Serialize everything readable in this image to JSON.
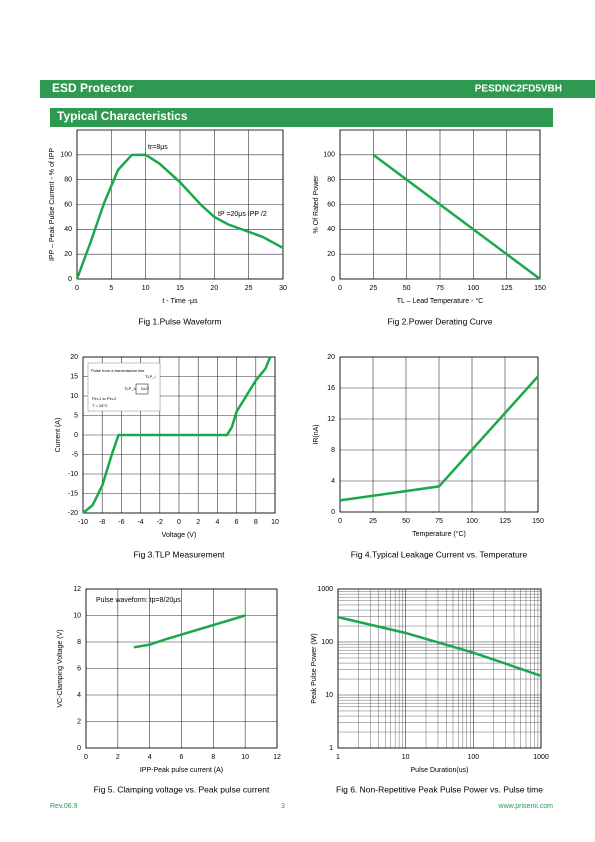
{
  "header": {
    "title": "ESD Protector",
    "part": "PESDNC2FD5VBH"
  },
  "section": "Typical Characteristics",
  "footer": {
    "revision": "Rev.06.9",
    "page": "3",
    "url": "www.prisemi.com"
  },
  "chart_data": [
    {
      "type": "line",
      "title": "Fig 1.Pulse Waveform",
      "xlabel": "t - Time -μs",
      "ylabel": "IPP – Peak Pulse Current - % of IPP",
      "x": [
        0,
        2,
        4,
        6,
        8,
        10,
        12,
        15,
        18,
        20,
        22,
        25,
        27,
        30
      ],
      "values": [
        0,
        30,
        62,
        88,
        100,
        100,
        93,
        78,
        60,
        50,
        44,
        38,
        34,
        25
      ],
      "color": "#1aa84c",
      "xlim": [
        0,
        30
      ],
      "ylim": [
        0,
        120
      ],
      "xticks": [
        0,
        5,
        10,
        15,
        20,
        25,
        30
      ],
      "yticks": [
        0,
        20,
        40,
        60,
        80,
        100
      ],
      "grid": true,
      "annotations": [
        "tr=8μs",
        "tP =20μs IPP /2"
      ]
    },
    {
      "type": "line",
      "title": "Fig 2.Power Derating Curve",
      "xlabel": "TL – Lead Temperature - °C",
      "ylabel": "% Of Rated Power",
      "x": [
        25,
        150
      ],
      "values": [
        100,
        0
      ],
      "color": "#1aa84c",
      "xlim": [
        0,
        150
      ],
      "ylim": [
        0,
        120
      ],
      "xticks": [
        0,
        25,
        50,
        75,
        100,
        125,
        150
      ],
      "yticks": [
        0,
        20,
        40,
        60,
        80,
        100
      ],
      "grid": true
    },
    {
      "type": "line",
      "title": "Fig 3.TLP Measurement",
      "xlabel": "Voltage    (V)",
      "ylabel": "Current (A)",
      "x": [
        -10,
        -9,
        -8,
        -7,
        -6.3,
        5,
        5.5,
        6,
        7,
        8,
        9,
        9.5
      ],
      "values": [
        -20,
        -18,
        -13,
        -5,
        0,
        0,
        2,
        6,
        10,
        14,
        17,
        20
      ],
      "color": "#1aa84c",
      "xlim": [
        -10,
        10
      ],
      "ylim": [
        -20,
        20
      ],
      "xticks": [
        -10,
        -8,
        -6,
        -4,
        -2,
        0,
        2,
        4,
        6,
        8,
        10
      ],
      "yticks": [
        -20,
        -15,
        -10,
        -5,
        0,
        5,
        10,
        15,
        20
      ],
      "grid": true,
      "annotations": [
        "Pulse from a transmission line",
        "TLP_V",
        "DUT",
        "TLP_I",
        "Pin-1 to Pin-2",
        "T = 25°C"
      ]
    },
    {
      "type": "line",
      "title": "Fig 4.Typical Leakage Current vs. Temperature",
      "xlabel": "Temperature (°C)",
      "ylabel": "IR(nA)",
      "x": [
        0,
        75,
        150
      ],
      "values": [
        1.5,
        3.3,
        17.5
      ],
      "color": "#1aa84c",
      "xlim": [
        0,
        150
      ],
      "ylim": [
        0,
        20
      ],
      "xticks": [
        0,
        25,
        50,
        75,
        100,
        125,
        150
      ],
      "yticks": [
        0,
        4,
        8,
        12,
        16,
        20
      ],
      "grid": true
    },
    {
      "type": "line",
      "title": "Fig 5. Clamping voltage vs. Peak pulse current",
      "xlabel": "IPP-Peak pulse current (A)",
      "ylabel": "VC-Clamping Voltage (V)",
      "x": [
        3,
        4,
        5,
        10
      ],
      "values": [
        7.6,
        7.8,
        8.2,
        10
      ],
      "color": "#1aa84c",
      "xlim": [
        0,
        12
      ],
      "ylim": [
        0,
        12
      ],
      "xticks": [
        0,
        2,
        4,
        6,
        8,
        10,
        12
      ],
      "yticks": [
        0,
        2,
        4,
        6,
        8,
        10,
        12
      ],
      "grid": true,
      "annotations": [
        "Pulse waveform: tp=8/20μs"
      ]
    },
    {
      "type": "line",
      "title": "Fig 6. Non-Repetitive Peak Pulse Power vs. Pulse time",
      "xlabel": "Pulse Duration(us)",
      "ylabel": "Peak Pulse Power (W)",
      "x": [
        1,
        10,
        100,
        1000
      ],
      "values": [
        295,
        148,
        63,
        23
      ],
      "color": "#1aa84c",
      "log_x": true,
      "log_y": true,
      "xlim": [
        1,
        1000
      ],
      "ylim": [
        1,
        1000
      ],
      "xticks": [
        1,
        10,
        100,
        1000
      ],
      "yticks": [
        1,
        10,
        100,
        1000
      ],
      "grid": true,
      "minor_grid": true
    }
  ]
}
